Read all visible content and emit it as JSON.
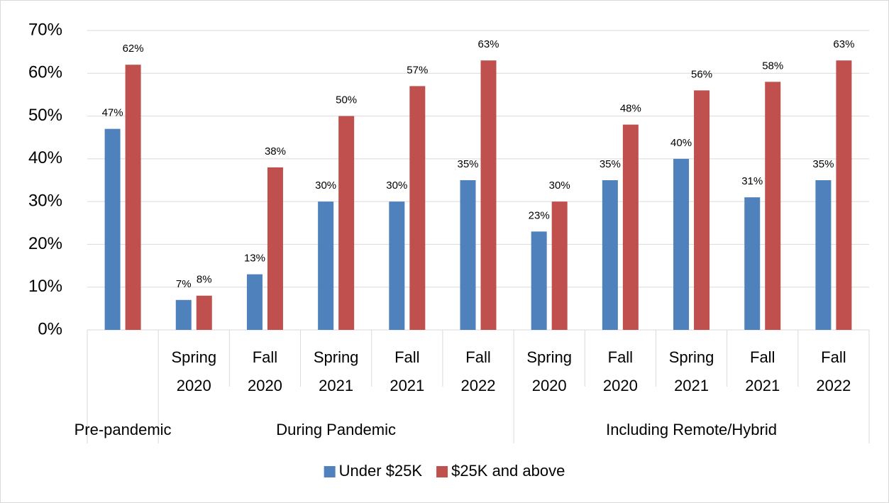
{
  "chart_data": {
    "type": "bar",
    "categories": [
      null,
      "Spring 2020",
      "Fall 2020",
      "Spring 2021",
      "Fall 2021",
      "Fall 2022",
      "Spring 2020",
      "Fall 2020",
      "Spring 2021",
      "Fall 2021",
      "Fall 2022"
    ],
    "group_labels": [
      "Pre-pandemic",
      "During Pandemic",
      "Including Remote/Hybrid"
    ],
    "group_sizes": [
      1,
      5,
      5
    ],
    "series": [
      {
        "name": "Under $25K",
        "color": "#4f81bd",
        "values": [
          47,
          7,
          13,
          30,
          30,
          35,
          23,
          35,
          40,
          31,
          35
        ],
        "value_labels": [
          "47%",
          "7%",
          "13%",
          "30%",
          "30%",
          "35%",
          "23%",
          "35%",
          "40%",
          "31%",
          "35%"
        ]
      },
      {
        "name": "$25K and above",
        "color": "#c0504d",
        "values": [
          62,
          8,
          38,
          50,
          57,
          63,
          30,
          48,
          56,
          58,
          63
        ],
        "value_labels": [
          "62%",
          "8%",
          "38%",
          "50%",
          "57%",
          "63%",
          "30%",
          "48%",
          "56%",
          "58%",
          "63%"
        ]
      }
    ],
    "ylim": [
      0,
      70
    ],
    "yticks": [
      {
        "value": 0,
        "label": "0%"
      },
      {
        "value": 10,
        "label": "10%"
      },
      {
        "value": 20,
        "label": "20%"
      },
      {
        "value": 30,
        "label": "30%"
      },
      {
        "value": 40,
        "label": "40%"
      },
      {
        "value": 50,
        "label": "50%"
      },
      {
        "value": 60,
        "label": "60%"
      },
      {
        "value": 70,
        "label": "70%"
      }
    ],
    "grid": true,
    "legend": "bottom"
  }
}
